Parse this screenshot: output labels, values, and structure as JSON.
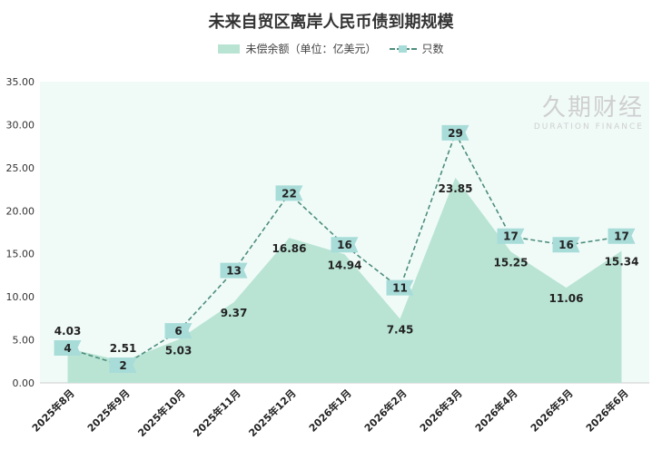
{
  "chart_data": {
    "type": "area",
    "title": "未来自贸区离岸人民币债到期规模",
    "categories": [
      "2025年8月",
      "2025年9月",
      "2025年10月",
      "2025年11月",
      "2025年12月",
      "2026年1月",
      "2026年2月",
      "2026年3月",
      "2026年4月",
      "2026年5月",
      "2026年6月"
    ],
    "series": [
      {
        "name": "未偿余额（单位：亿美元）",
        "type": "area",
        "color": "#b9e4d4",
        "values": [
          4.03,
          2.51,
          5.03,
          9.37,
          16.86,
          14.94,
          7.45,
          23.85,
          15.25,
          11.06,
          15.34
        ]
      },
      {
        "name": "只数",
        "type": "line",
        "style": "dashed",
        "color": "#4d8d7c",
        "marker_color": "#a8dcd8",
        "values": [
          4,
          2,
          6,
          13,
          22,
          16,
          11,
          29,
          17,
          16,
          17
        ]
      }
    ],
    "ylim": [
      0,
      35
    ],
    "yticks": [
      "0.00",
      "5.00",
      "10.00",
      "15.00",
      "20.00",
      "25.00",
      "30.00",
      "35.00"
    ],
    "legend": "top",
    "grid": false
  },
  "watermark": {
    "cn": "久期财经",
    "en": "DURATION FINANCE"
  }
}
